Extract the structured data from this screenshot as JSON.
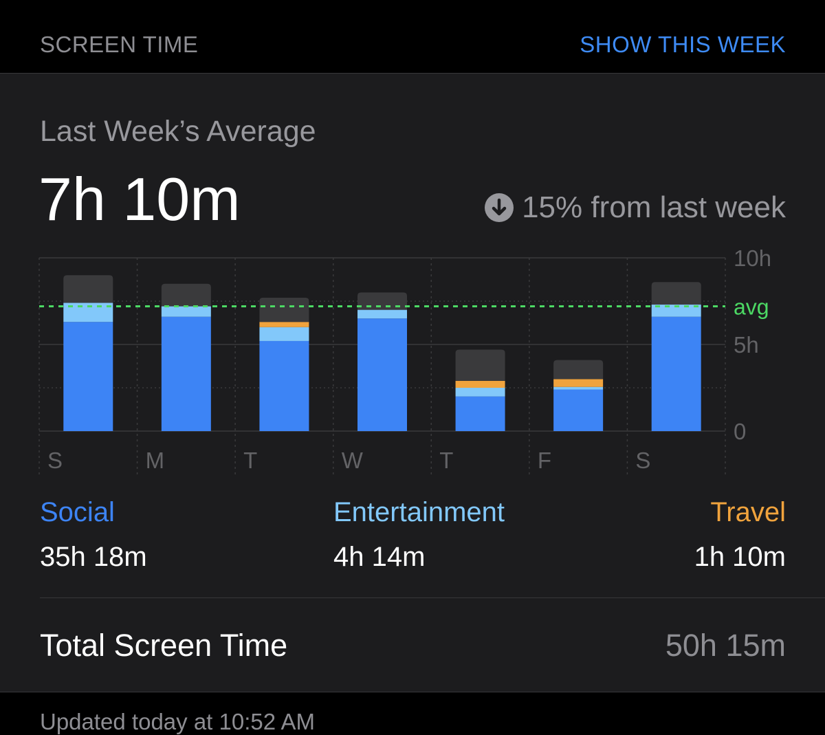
{
  "header": {
    "title": "SCREEN TIME",
    "action_label": "SHOW THIS WEEK"
  },
  "summary": {
    "label": "Last Week’s Average",
    "value": "7h 10m",
    "change_text": "15% from last week",
    "change_icon": "arrow-down-circle-icon"
  },
  "chart_data": {
    "type": "bar",
    "stacked": true,
    "categories": [
      "S",
      "M",
      "T",
      "W",
      "T",
      "F",
      "S"
    ],
    "y_ticks": [
      "10h",
      "5h",
      "0"
    ],
    "ylim": [
      0,
      10
    ],
    "avg_label": "avg",
    "avg_value": 7.2,
    "series": [
      {
        "name": "Social",
        "color": "#3d84f5",
        "values": [
          6.3,
          6.6,
          5.2,
          6.5,
          2.0,
          2.4,
          6.6
        ]
      },
      {
        "name": "Entertainment",
        "color": "#82c8fa",
        "values": [
          1.1,
          0.6,
          0.8,
          0.5,
          0.5,
          0.15,
          0.7
        ]
      },
      {
        "name": "Travel",
        "color": "#f0a33d",
        "values": [
          0,
          0,
          0.3,
          0,
          0.4,
          0.45,
          0
        ]
      },
      {
        "values": [
          1.6,
          1.3,
          1.4,
          1.0,
          1.8,
          1.1,
          1.3
        ],
        "color": "#3a3a3c"
      }
    ],
    "grid": true
  },
  "categories": [
    {
      "name": "Social",
      "value": "35h 18m",
      "color": "#3d84f5"
    },
    {
      "name": "Entertainment",
      "value": "4h 14m",
      "color": "#82c8fa"
    },
    {
      "name": "Travel",
      "value": "1h 10m",
      "color": "#f0a33d"
    }
  ],
  "total": {
    "label": "Total Screen Time",
    "value": "50h 15m"
  },
  "footer": {
    "updated": "Updated today at 10:52 AM"
  }
}
